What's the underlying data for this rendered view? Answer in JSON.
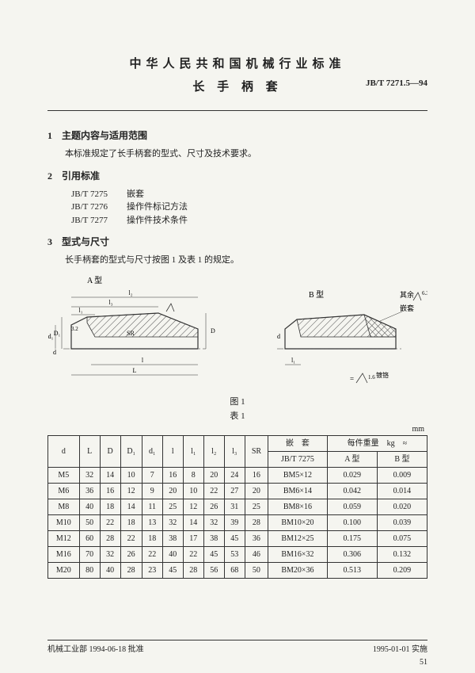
{
  "header": {
    "title_main": "中华人民共和国机械行业标准",
    "title_sub": "长 手 柄 套",
    "std_code": "JB/T 7271.5—94"
  },
  "section1": {
    "head": "1　主题内容与适用范围",
    "body": "本标准规定了长手柄套的型式、尺寸及技术要求。"
  },
  "section2": {
    "head": "2　引用标准",
    "refs": [
      {
        "code": "JB/T 7275",
        "name": "嵌套"
      },
      {
        "code": "JB/T 7276",
        "name": "操作件标记方法"
      },
      {
        "code": "JB/T 7277",
        "name": "操作件技术条件"
      }
    ]
  },
  "section3": {
    "head": "3　型式与尺寸",
    "body": "长手柄套的型式与尺寸按图 1 及表 1 的规定。"
  },
  "figure": {
    "label_a": "A 型",
    "label_b": "B 型",
    "extra_label": "其余",
    "insert_label": "嵌套",
    "caption_fig": "图 1",
    "caption_tab": "表 1",
    "finish_note": "镀铬",
    "ra_value": "6.3",
    "dim_labels": [
      "l₂",
      "l₃",
      "l₁",
      "D₁",
      "d₁",
      "d",
      "SR",
      "D",
      "l",
      "L",
      "l₁"
    ]
  },
  "table": {
    "unit": "mm",
    "head1": [
      "d",
      "L",
      "D",
      "D₁",
      "d₁",
      "l",
      "l₁",
      "l₂",
      "l₃",
      "SR",
      "嵌　套",
      "每件重量　kg　≈"
    ],
    "head2_insert": "JB/T 7275",
    "head2_a": "A 型",
    "head2_b": "B 型",
    "rows": [
      [
        "M5",
        "32",
        "14",
        "10",
        "7",
        "16",
        "8",
        "20",
        "24",
        "16",
        "BM5×12",
        "0.029",
        "0.009"
      ],
      [
        "M6",
        "36",
        "16",
        "12",
        "9",
        "20",
        "10",
        "22",
        "27",
        "20",
        "BM6×14",
        "0.042",
        "0.014"
      ],
      [
        "M8",
        "40",
        "18",
        "14",
        "11",
        "25",
        "12",
        "26",
        "31",
        "25",
        "BM8×16",
        "0.059",
        "0.020"
      ],
      [
        "M10",
        "50",
        "22",
        "18",
        "13",
        "32",
        "14",
        "32",
        "39",
        "28",
        "BM10×20",
        "0.100",
        "0.039"
      ],
      [
        "M12",
        "60",
        "28",
        "22",
        "18",
        "38",
        "17",
        "38",
        "45",
        "36",
        "BM12×25",
        "0.175",
        "0.075"
      ],
      [
        "M16",
        "70",
        "32",
        "26",
        "22",
        "40",
        "22",
        "45",
        "53",
        "46",
        "BM16×32",
        "0.306",
        "0.132"
      ],
      [
        "M20",
        "80",
        "40",
        "28",
        "23",
        "45",
        "28",
        "56",
        "68",
        "50",
        "BM20×36",
        "0.513",
        "0.209"
      ]
    ]
  },
  "footer": {
    "left": "机械工业部 1994-06-18 批准",
    "right": "1995-01-01 实施",
    "page": "51"
  },
  "colors": {
    "text": "#222222",
    "line": "#333333",
    "hatch": "#555555",
    "bg": "#f5f5f0"
  }
}
